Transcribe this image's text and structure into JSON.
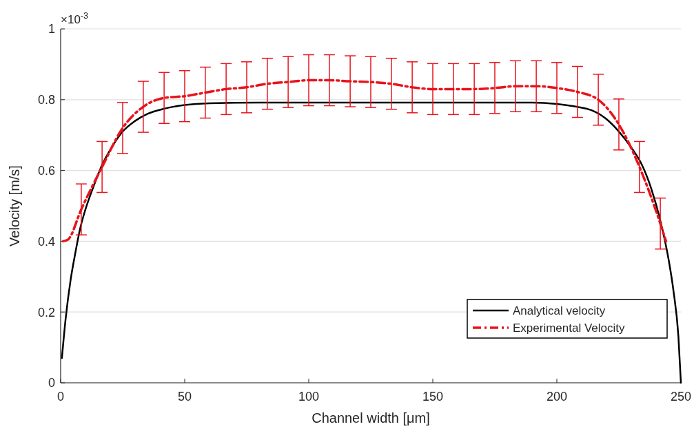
{
  "chart_data": {
    "type": "line",
    "xlabel": "Channel width [μm]",
    "ylabel": "Velocity [m/s]",
    "annotations": [
      "×10$^{-3}$"
    ],
    "xlim": [
      0,
      250
    ],
    "xticks": [
      0,
      50,
      100,
      150,
      200,
      250
    ],
    "ylim": [
      0,
      1
    ],
    "yticks": [
      0,
      0.2,
      0.4,
      0.6,
      0.8,
      1
    ],
    "grid": "y",
    "legend": "bottom right",
    "marker": "none",
    "series": [
      {
        "name": "Analytical velocity",
        "color": "#000000",
        "line_style": "solid",
        "x": [
          0.5,
          2,
          4,
          6,
          8,
          10,
          13,
          17,
          21,
          25,
          30,
          35,
          42,
          50,
          60,
          80,
          190,
          200,
          208,
          214,
          220,
          225,
          230,
          234,
          238,
          242,
          245,
          247,
          249,
          250
        ],
        "values": [
          0.07,
          0.18,
          0.29,
          0.37,
          0.44,
          0.49,
          0.55,
          0.62,
          0.67,
          0.71,
          0.74,
          0.76,
          0.775,
          0.785,
          0.79,
          0.792,
          0.792,
          0.788,
          0.78,
          0.77,
          0.745,
          0.71,
          0.665,
          0.62,
          0.55,
          0.45,
          0.35,
          0.26,
          0.13,
          0
        ]
      },
      {
        "name": "Experimental Velocity",
        "color": "#e8131b",
        "line_style": "dashed",
        "x": [
          1,
          3,
          8.3,
          16.7,
          25,
          33.3,
          41.7,
          50,
          58.3,
          66.7,
          75,
          83.3,
          91.7,
          100,
          108.3,
          116.7,
          125,
          133.3,
          141.7,
          150,
          158.3,
          166.7,
          175,
          183.3,
          191.7,
          200,
          208.3,
          216.7,
          225,
          233.3,
          241.7,
          244
        ],
        "values": [
          0.4,
          0.405,
          0.49,
          0.61,
          0.72,
          0.78,
          0.805,
          0.81,
          0.82,
          0.83,
          0.835,
          0.845,
          0.85,
          0.855,
          0.855,
          0.852,
          0.85,
          0.845,
          0.835,
          0.83,
          0.83,
          0.83,
          0.833,
          0.838,
          0.838,
          0.833,
          0.822,
          0.8,
          0.73,
          0.61,
          0.45,
          0.4
        ],
        "errors": [
          null,
          null,
          0.072,
          0.072,
          0.072,
          0.072,
          0.072,
          0.072,
          0.072,
          0.072,
          0.072,
          0.072,
          0.072,
          0.072,
          0.072,
          0.072,
          0.072,
          0.072,
          0.072,
          0.072,
          0.072,
          0.072,
          0.072,
          0.072,
          0.072,
          0.072,
          0.072,
          0.072,
          0.072,
          0.072,
          0.072,
          null
        ]
      }
    ]
  }
}
